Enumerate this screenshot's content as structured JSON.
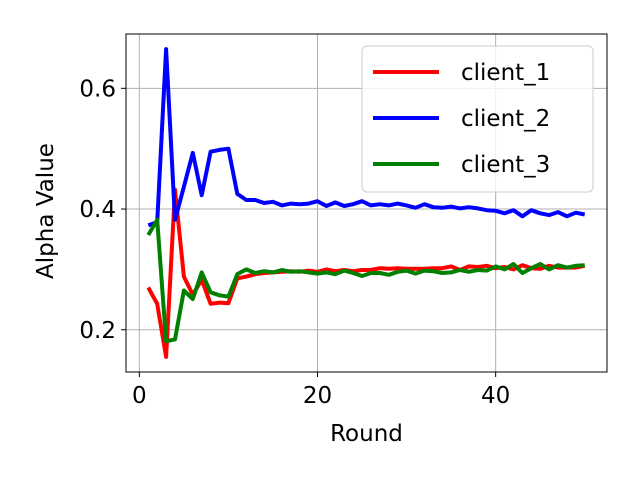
{
  "chart_data": {
    "type": "line",
    "title": "",
    "xlabel": "Round",
    "ylabel": "Alpha Value",
    "xlim": [
      -1.5,
      52.5
    ],
    "ylim": [
      0.13,
      0.69
    ],
    "xticks": [
      0,
      20,
      40
    ],
    "yticks": [
      0.2,
      0.4,
      0.6
    ],
    "xtick_labels": [
      "0",
      "20",
      "40"
    ],
    "ytick_labels": [
      "0.2",
      "0.4",
      "0.6"
    ],
    "grid": true,
    "legend_position": "top-right",
    "x": [
      1,
      2,
      3,
      4,
      5,
      6,
      7,
      8,
      9,
      10,
      11,
      12,
      13,
      14,
      15,
      16,
      17,
      18,
      19,
      20,
      21,
      22,
      23,
      24,
      25,
      26,
      27,
      28,
      29,
      30,
      31,
      32,
      33,
      34,
      35,
      36,
      37,
      38,
      39,
      40,
      41,
      42,
      43,
      44,
      45,
      46,
      47,
      48,
      49,
      50
    ],
    "series": [
      {
        "name": "client_1",
        "color": "#ff0000",
        "values": [
          0.27,
          0.243,
          0.155,
          0.432,
          0.288,
          0.258,
          0.283,
          0.243,
          0.245,
          0.244,
          0.285,
          0.288,
          0.292,
          0.294,
          0.295,
          0.296,
          0.297,
          0.296,
          0.298,
          0.296,
          0.3,
          0.297,
          0.299,
          0.297,
          0.299,
          0.299,
          0.302,
          0.301,
          0.302,
          0.301,
          0.301,
          0.301,
          0.302,
          0.302,
          0.305,
          0.299,
          0.305,
          0.304,
          0.306,
          0.302,
          0.304,
          0.3,
          0.307,
          0.302,
          0.301,
          0.306,
          0.303,
          0.303,
          0.303,
          0.306
        ]
      },
      {
        "name": "client_2",
        "color": "#0000ff",
        "values": [
          0.373,
          0.378,
          0.665,
          0.382,
          0.437,
          0.493,
          0.423,
          0.495,
          0.498,
          0.5,
          0.425,
          0.415,
          0.415,
          0.41,
          0.412,
          0.406,
          0.409,
          0.408,
          0.409,
          0.413,
          0.405,
          0.411,
          0.405,
          0.408,
          0.413,
          0.406,
          0.408,
          0.406,
          0.409,
          0.406,
          0.402,
          0.408,
          0.403,
          0.402,
          0.404,
          0.401,
          0.403,
          0.401,
          0.398,
          0.397,
          0.393,
          0.398,
          0.388,
          0.398,
          0.393,
          0.39,
          0.395,
          0.388,
          0.394,
          0.391
        ]
      },
      {
        "name": "client_3",
        "color": "#008000",
        "values": [
          0.357,
          0.382,
          0.181,
          0.184,
          0.265,
          0.251,
          0.295,
          0.262,
          0.257,
          0.255,
          0.292,
          0.3,
          0.294,
          0.297,
          0.295,
          0.299,
          0.296,
          0.297,
          0.295,
          0.293,
          0.295,
          0.292,
          0.298,
          0.294,
          0.289,
          0.294,
          0.294,
          0.291,
          0.296,
          0.298,
          0.293,
          0.298,
          0.297,
          0.294,
          0.295,
          0.299,
          0.296,
          0.299,
          0.298,
          0.305,
          0.3,
          0.309,
          0.294,
          0.302,
          0.309,
          0.3,
          0.307,
          0.303,
          0.306,
          0.307
        ]
      }
    ]
  }
}
